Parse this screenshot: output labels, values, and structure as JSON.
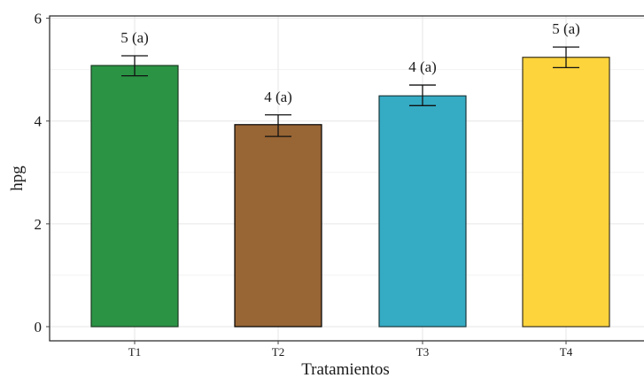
{
  "chart_data": {
    "type": "bar",
    "title": "",
    "xlabel": "Tratamientos",
    "ylabel": "hpg",
    "categories": [
      "T1",
      "T2",
      "T3",
      "T4"
    ],
    "values": [
      5.08,
      3.93,
      4.49,
      5.24
    ],
    "error_low": [
      4.88,
      3.7,
      4.3,
      5.04
    ],
    "error_high": [
      5.27,
      4.12,
      4.7,
      5.44
    ],
    "data_labels": [
      "5 (a)",
      "4 (a)",
      "4 (a)",
      "5 (a)"
    ],
    "colors": [
      "#2a9444",
      "#986535",
      "#35abc4",
      "#fdd43c"
    ],
    "bar_outline_colors": [
      "#1c3a22",
      "#000000",
      "#1c3a3e",
      "#3a3320"
    ],
    "ylim": [
      0,
      6
    ],
    "yticks": [
      "0",
      "2",
      "4",
      "6"
    ],
    "grid": true,
    "legend": "none"
  }
}
